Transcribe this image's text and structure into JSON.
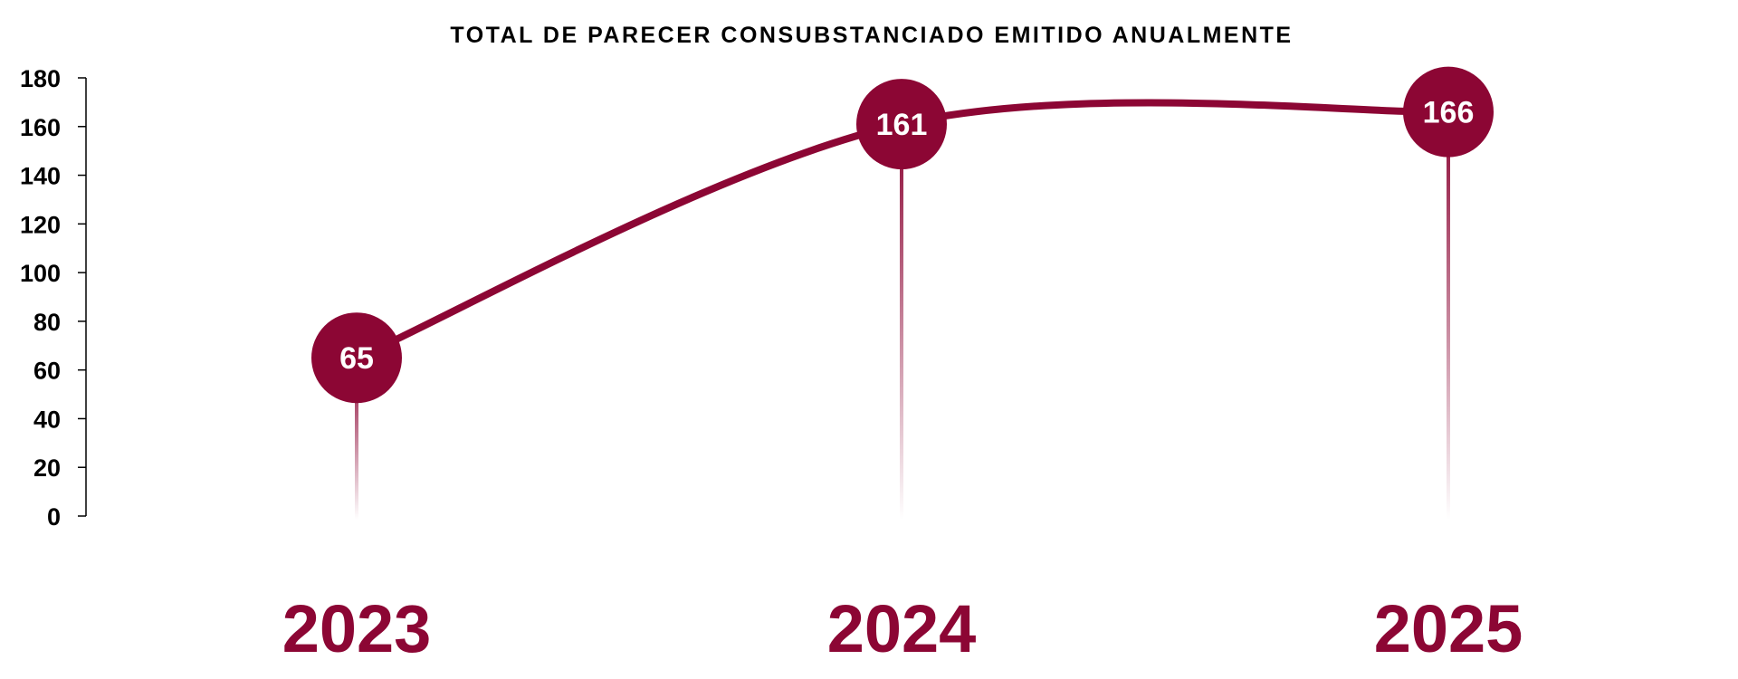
{
  "chart_data": {
    "type": "line",
    "title": "TOTAL DE PARECER CONSUBSTANCIADO EMITIDO ANUALMENTE",
    "categories": [
      "2023",
      "2024",
      "2025"
    ],
    "values": [
      65,
      161,
      166
    ],
    "data_labels": [
      "65",
      "161",
      "166"
    ],
    "ylim": [
      0,
      180
    ],
    "yticks": [
      "0",
      "20",
      "40",
      "60",
      "80",
      "100",
      "120",
      "140",
      "160",
      "180"
    ],
    "xlabel": "",
    "ylabel": "",
    "grid": false,
    "smooth": true,
    "markers": "circle-with-value-and-fading-stem",
    "colors": {
      "series": "#8c0634",
      "text": "#000000",
      "label": "#ffffff"
    }
  }
}
